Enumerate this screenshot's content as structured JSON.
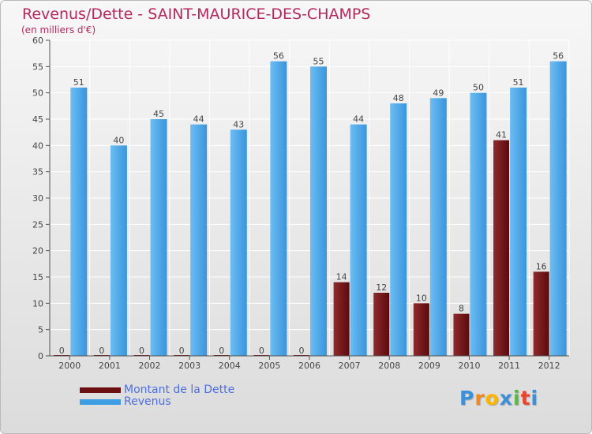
{
  "header": {
    "title": "Revenus/Dette - SAINT-MAURICE-DES-CHAMPS",
    "subtitle": "(en milliers d'€)"
  },
  "chart_data": {
    "type": "bar",
    "categories": [
      "2000",
      "2001",
      "2002",
      "2003",
      "2004",
      "2005",
      "2006",
      "2007",
      "2008",
      "2009",
      "2010",
      "2011",
      "2012"
    ],
    "series": [
      {
        "name": "Montant de la Dette",
        "color": "#7a1518",
        "values": [
          0,
          0,
          0,
          0,
          0,
          0,
          0,
          14,
          12,
          10,
          8,
          41,
          16
        ]
      },
      {
        "name": "Revenus",
        "color": "#3f9ee3",
        "values": [
          51,
          40,
          45,
          44,
          43,
          56,
          55,
          44,
          48,
          49,
          50,
          51,
          56
        ]
      }
    ],
    "ylim": [
      0,
      60
    ],
    "yticks": [
      0,
      5,
      10,
      15,
      20,
      25,
      30,
      35,
      40,
      45,
      50,
      55,
      60
    ],
    "grid": true,
    "legend_position": "bottom-left"
  },
  "legend": {
    "items": [
      {
        "label": "Montant de la Dette",
        "color": "#6b0f12"
      },
      {
        "label": "Revenus",
        "color": "#3f9ee3"
      }
    ]
  },
  "logo": {
    "letters": [
      "P",
      "r",
      "o",
      "x",
      "i",
      "t",
      "i"
    ],
    "colors": [
      "#3d8fd6",
      "#f08a1c",
      "#ffb400",
      "#3d8fd6",
      "#5fb548",
      "#e8452c",
      "#3d8fd6"
    ]
  }
}
